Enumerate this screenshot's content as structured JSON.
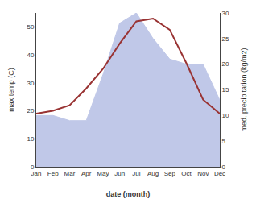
{
  "chart_data": {
    "type": "line",
    "categories": [
      "Jan",
      "Feb",
      "Mar",
      "Apr",
      "May",
      "Jun",
      "Jul",
      "Aug",
      "Sep",
      "Oct",
      "Nov",
      "Dec"
    ],
    "series": [
      {
        "type": "area",
        "color": "#c0c8e8",
        "axis": "y2",
        "values": [
          10,
          10,
          9,
          9,
          18,
          28,
          30,
          25,
          21,
          20,
          20,
          13
        ]
      },
      {
        "type": "line",
        "color": "#993333",
        "values": [
          19,
          20,
          22,
          28,
          35,
          44,
          52,
          53,
          49,
          37,
          24,
          19
        ]
      }
    ],
    "xlabel": "date (month)",
    "ylabel": "max temp (C)",
    "y2label": "med. precipitation (kg/m2)",
    "ylim": [
      0,
      55
    ],
    "yticks": [
      0,
      10,
      20,
      30,
      40,
      50
    ],
    "y2lim": [
      0,
      30
    ],
    "y2ticks": [
      0,
      5,
      10,
      15,
      20,
      25,
      30
    ],
    "grid": false
  }
}
